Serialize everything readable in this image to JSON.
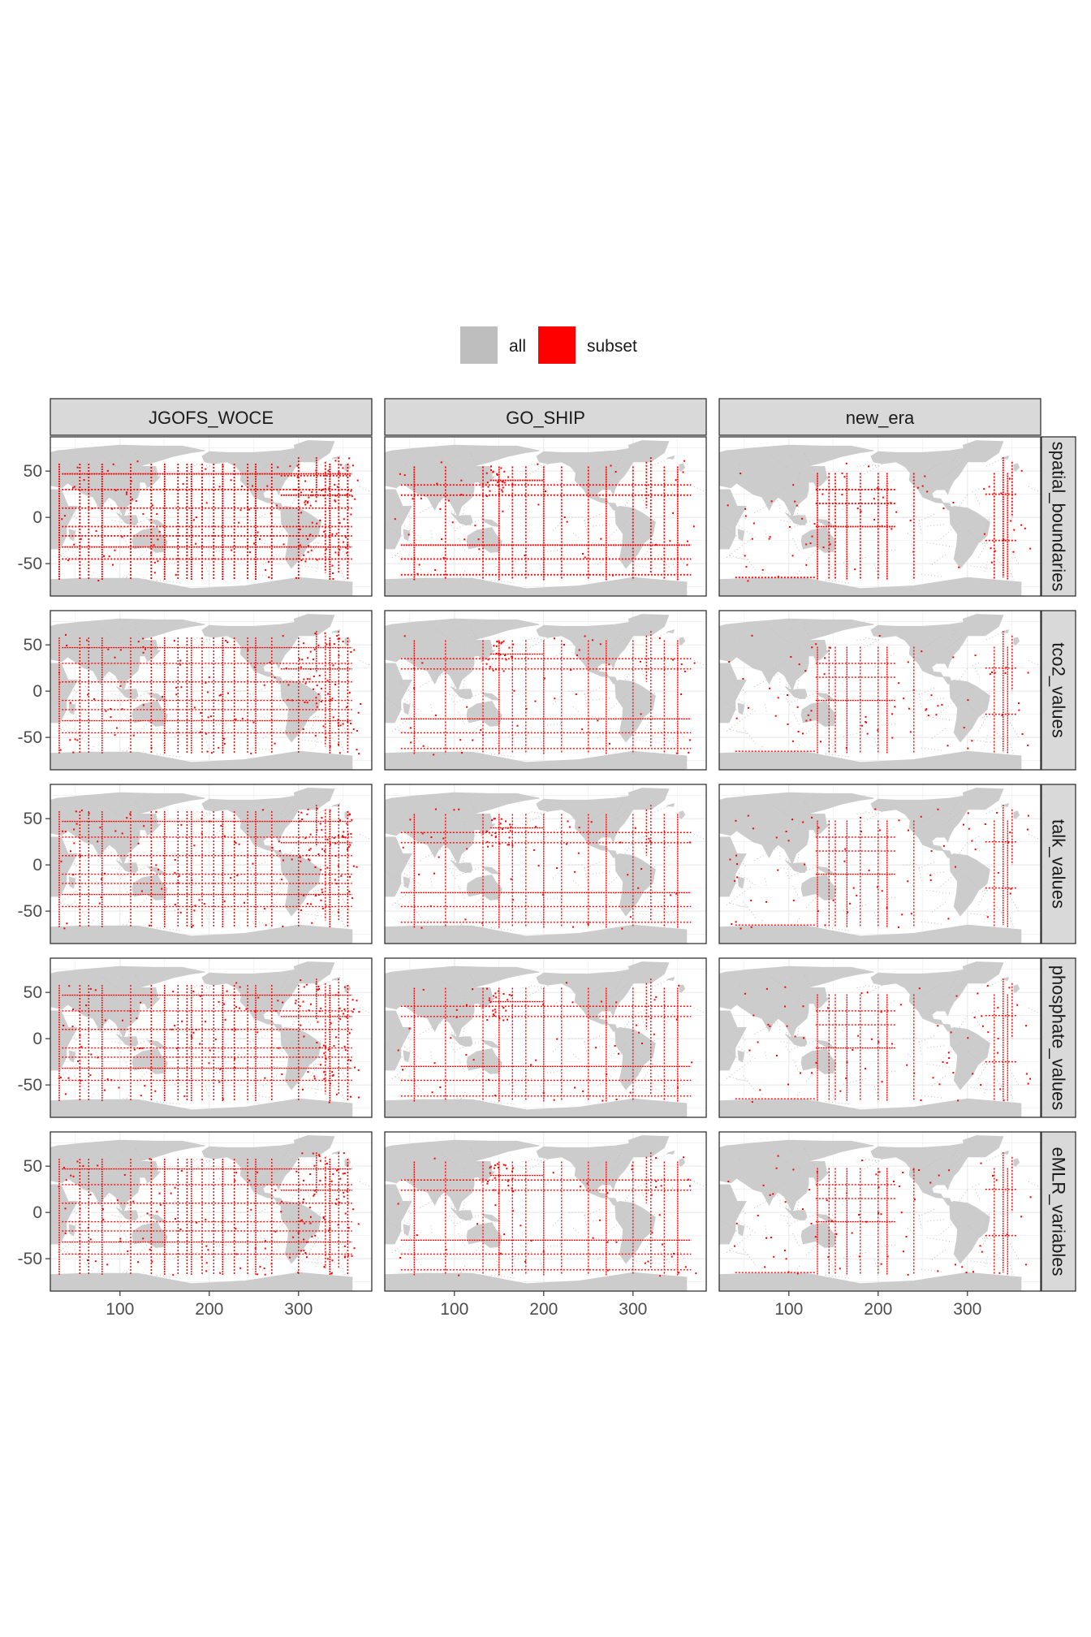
{
  "chart_data": {
    "type": "scatter",
    "title": "",
    "xlabel": "",
    "ylabel": "",
    "xlim": [
      22,
      382
    ],
    "ylim": [
      -85,
      87
    ],
    "x_ticks": [
      100,
      200,
      300
    ],
    "y_ticks": [
      50,
      0,
      -50
    ],
    "grid": true,
    "legend_position": "top",
    "legend": [
      {
        "name": "all",
        "color": "#bebebe"
      },
      {
        "name": "subset",
        "color": "#ff0000"
      }
    ],
    "facet_columns": [
      "JGOFS_WOCE",
      "GO_SHIP",
      "new_era"
    ],
    "facet_rows": [
      "spatial_boundaries",
      "tco2_values",
      "talk_values",
      "phosphate_values",
      "eMLR_variables"
    ],
    "land_color": "#cccccc",
    "panel_background": "#ffffff",
    "strip_color": "#d9d9d9"
  }
}
